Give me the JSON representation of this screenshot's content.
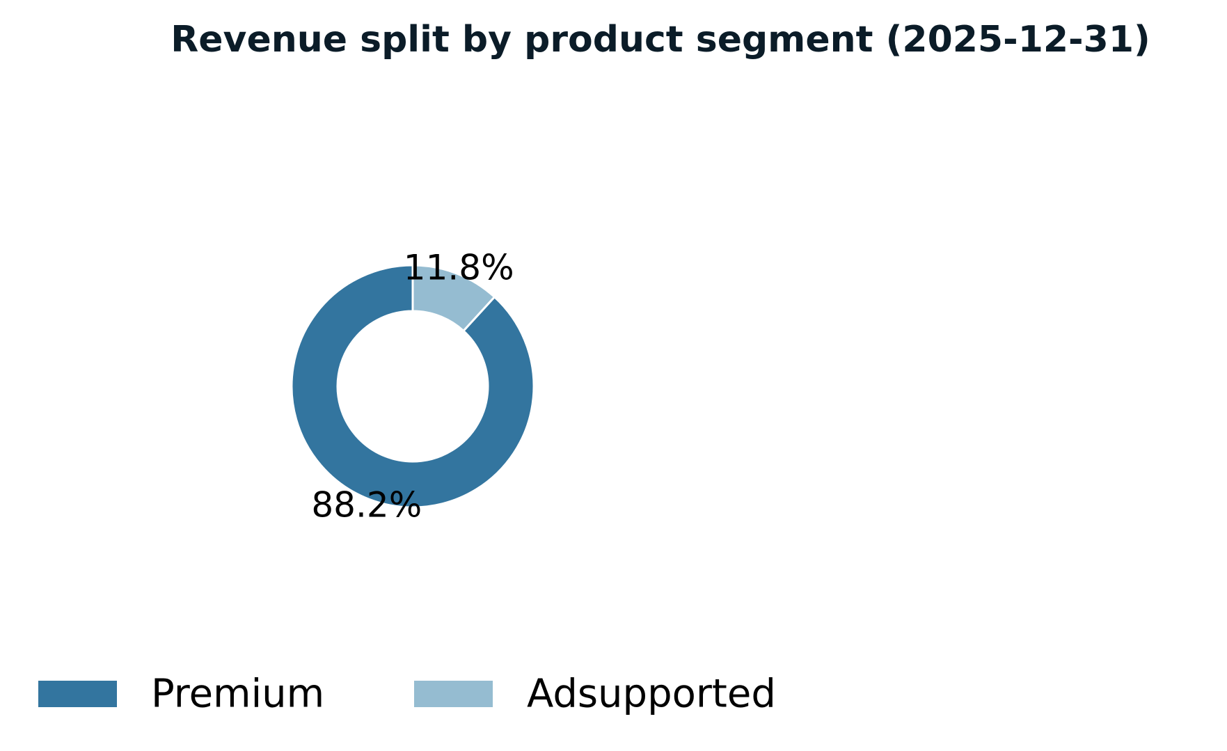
{
  "chart_data": {
    "type": "pie",
    "variant": "donut",
    "title": "Revenue split by product segment (2025-12-31)",
    "categories": [
      "Premium",
      "Adsupported"
    ],
    "values": [
      88.2,
      11.8
    ],
    "labels": [
      "88.2%",
      "11.8%"
    ],
    "colors": [
      "#33759f",
      "#95bcd1"
    ],
    "legend": {
      "placement": "bottom-left",
      "entries": [
        "Premium",
        "Adsupported"
      ]
    }
  }
}
